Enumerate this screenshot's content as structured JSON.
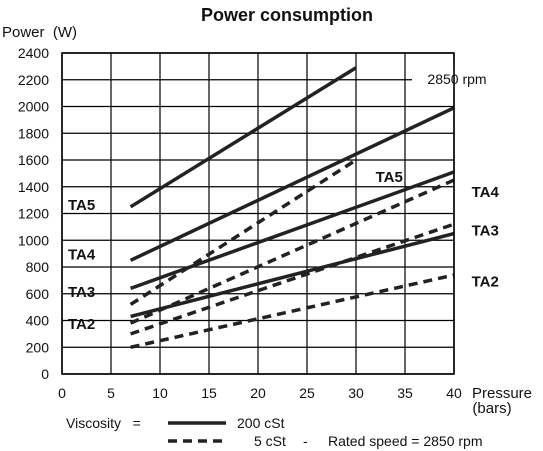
{
  "chart_data": {
    "type": "line",
    "title": "Power consumption",
    "ylabel": "Power  (W)",
    "xlabel": "Pressure",
    "xlabel_unit": "(bars)",
    "xlim": [
      0,
      40
    ],
    "ylim": [
      0,
      2400
    ],
    "x_ticks": [
      0,
      5,
      10,
      15,
      20,
      25,
      30,
      35,
      40
    ],
    "y_ticks": [
      0,
      200,
      400,
      600,
      800,
      1000,
      1200,
      1400,
      1600,
      1800,
      2000,
      2200,
      2400
    ],
    "grid": true,
    "annotation": "2850 rpm",
    "series": [
      {
        "name": "TA5",
        "viscosity": "200 cSt",
        "style": "solid",
        "x": [
          7,
          30
        ],
        "y": [
          1250,
          2290
        ],
        "label_side": "left"
      },
      {
        "name": "TA4",
        "viscosity": "200 cSt",
        "style": "solid",
        "x": [
          7,
          40
        ],
        "y": [
          850,
          1990
        ],
        "label_side": "left"
      },
      {
        "name": "TA3",
        "viscosity": "200 cSt",
        "style": "solid",
        "x": [
          7,
          40
        ],
        "y": [
          640,
          1510
        ],
        "label_side": "left"
      },
      {
        "name": "TA2",
        "viscosity": "200 cSt",
        "style": "solid",
        "x": [
          7,
          40
        ],
        "y": [
          430,
          1050
        ],
        "label_side": "left"
      },
      {
        "name": "TA5",
        "viscosity": "5 cSt",
        "style": "dashed",
        "x": [
          7,
          30
        ],
        "y": [
          520,
          1600
        ],
        "label_side": "right"
      },
      {
        "name": "TA4",
        "viscosity": "5 cSt",
        "style": "dashed",
        "x": [
          7,
          40
        ],
        "y": [
          380,
          1450
        ],
        "label_side": "right"
      },
      {
        "name": "TA3",
        "viscosity": "5 cSt",
        "style": "dashed",
        "x": [
          7,
          40
        ],
        "y": [
          300,
          1120
        ],
        "label_side": "right"
      },
      {
        "name": "TA2",
        "viscosity": "5 cSt",
        "style": "dashed",
        "x": [
          7,
          40
        ],
        "y": [
          200,
          740
        ],
        "label_side": "right"
      }
    ],
    "left_labels": [
      {
        "text": "TA5",
        "y": 1270
      },
      {
        "text": "TA4",
        "y": 900
      },
      {
        "text": "TA3",
        "y": 620
      },
      {
        "text": "TA2",
        "y": 380
      }
    ],
    "right_labels": [
      {
        "text": "TA5",
        "x": 32,
        "y": 1480
      },
      {
        "text": "TA4",
        "x": 41.8,
        "y": 1370
      },
      {
        "text": "TA3",
        "x": 41.8,
        "y": 1080
      },
      {
        "text": "TA2",
        "x": 41.8,
        "y": 700
      }
    ],
    "legend": {
      "prefix": "Viscosity   =",
      "solid_label": "200 cSt",
      "dashed_label": "5 cSt",
      "separator": "-",
      "note": "Rated speed = 2850 rpm"
    }
  }
}
